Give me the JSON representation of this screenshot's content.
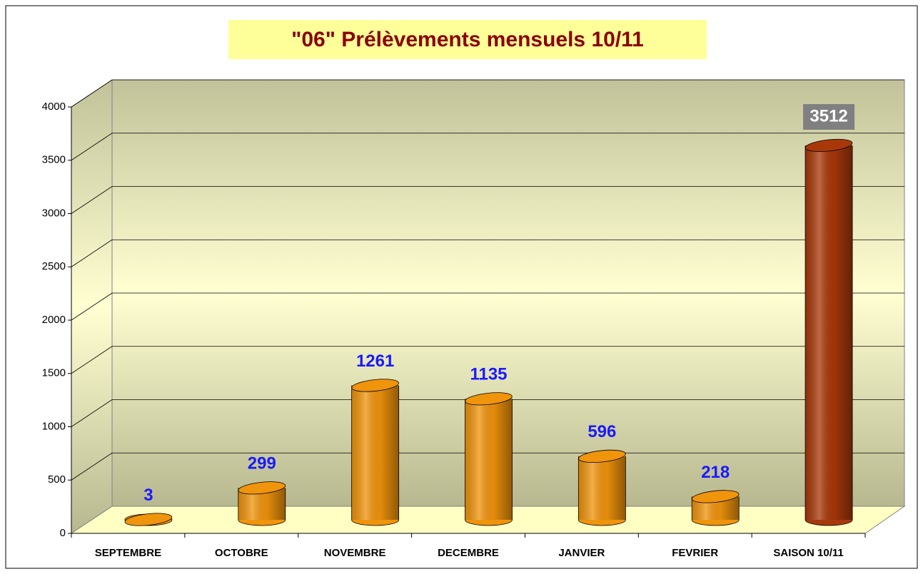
{
  "chart_data": {
    "type": "bar",
    "title": "\"06\" Prélèvements mensuels 10/11",
    "categories": [
      "SEPTEMBRE",
      "OCTOBRE",
      "NOVEMBRE",
      "DECEMBRE",
      "JANVIER",
      "FEVRIER",
      "SAISON 10/11"
    ],
    "values": [
      3,
      299,
      1261,
      1135,
      596,
      218,
      3512
    ],
    "colors": [
      "#f0940c",
      "#f0940c",
      "#f0940c",
      "#f0940c",
      "#f0940c",
      "#f0940c",
      "#a8380a"
    ],
    "ylim": [
      0,
      4000
    ],
    "yticks": [
      0,
      500,
      1000,
      1500,
      2000,
      2500,
      3000,
      3500,
      4000
    ],
    "grid": true
  }
}
